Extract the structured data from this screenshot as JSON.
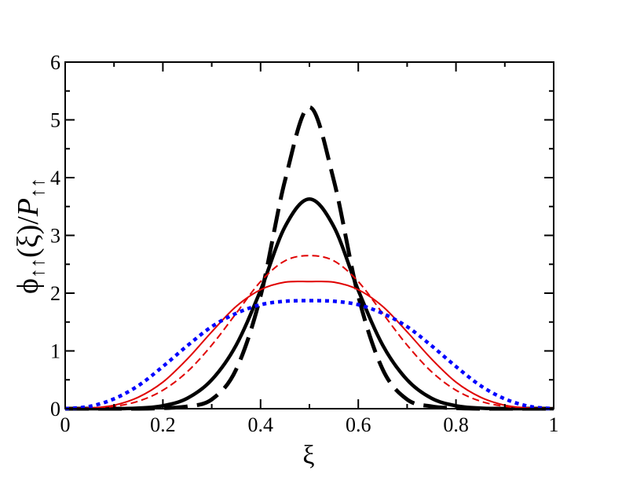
{
  "chart_data": {
    "type": "line",
    "title": "",
    "xlabel": "ξ",
    "ylabel": {
      "main": "ϕ",
      "sub1": "↑↑",
      "mid": "(ξ)/",
      "italic": "P",
      "sub2": "↑↑"
    },
    "xlim": [
      0,
      1
    ],
    "ylim": [
      0,
      6
    ],
    "x_ticks": [
      0,
      0.2,
      0.4,
      0.6,
      0.8,
      1
    ],
    "x_tick_labels": [
      "0",
      "0.2",
      "0.4",
      "0.6",
      "0.8",
      "1"
    ],
    "y_ticks": [
      0,
      1,
      2,
      3,
      4,
      5,
      6
    ],
    "y_tick_labels": [
      "0",
      "1",
      "2",
      "3",
      "4",
      "5",
      "6"
    ],
    "grid": false,
    "legend": "none",
    "series": [
      {
        "style": "black-thick-long-dash",
        "color": "#000000",
        "x": [
          0,
          0.05,
          0.1,
          0.15,
          0.2,
          0.25,
          0.3,
          0.35,
          0.4,
          0.45,
          0.5,
          0.55,
          0.6,
          0.65,
          0.7,
          0.75,
          0.8,
          0.85,
          0.9,
          0.95,
          1
        ],
        "y": [
          0,
          0,
          0,
          0,
          0.01,
          0.04,
          0.16,
          0.68,
          1.95,
          3.95,
          5.22,
          3.95,
          1.95,
          0.68,
          0.16,
          0.04,
          0.01,
          0,
          0,
          0,
          0
        ]
      },
      {
        "style": "black-thick-solid",
        "color": "#000000",
        "x": [
          0,
          0.05,
          0.1,
          0.15,
          0.2,
          0.25,
          0.3,
          0.35,
          0.4,
          0.45,
          0.5,
          0.55,
          0.6,
          0.65,
          0.7,
          0.75,
          0.8,
          0.85,
          0.9,
          0.95,
          1
        ],
        "y": [
          0,
          0,
          0,
          0.01,
          0.05,
          0.18,
          0.5,
          1.1,
          2.05,
          3.15,
          3.63,
          3.15,
          2.05,
          1.1,
          0.5,
          0.18,
          0.05,
          0.01,
          0,
          0,
          0
        ]
      },
      {
        "style": "red-dashed",
        "color": "#e00000",
        "x": [
          0,
          0.05,
          0.1,
          0.15,
          0.2,
          0.25,
          0.3,
          0.35,
          0.4,
          0.45,
          0.5,
          0.55,
          0.6,
          0.65,
          0.7,
          0.75,
          0.8,
          0.85,
          0.9,
          0.95,
          1
        ],
        "y": [
          0,
          0.01,
          0.04,
          0.13,
          0.32,
          0.64,
          1.1,
          1.65,
          2.2,
          2.56,
          2.65,
          2.56,
          2.2,
          1.65,
          1.1,
          0.64,
          0.32,
          0.13,
          0.04,
          0.01,
          0
        ]
      },
      {
        "style": "red-solid",
        "color": "#e00000",
        "x": [
          0,
          0.05,
          0.1,
          0.15,
          0.2,
          0.25,
          0.3,
          0.35,
          0.4,
          0.45,
          0.5,
          0.55,
          0.6,
          0.65,
          0.7,
          0.75,
          0.8,
          0.85,
          0.9,
          0.95,
          1
        ],
        "y": [
          0,
          0.01,
          0.06,
          0.2,
          0.46,
          0.86,
          1.33,
          1.77,
          2.06,
          2.19,
          2.2,
          2.19,
          2.06,
          1.77,
          1.33,
          0.86,
          0.46,
          0.2,
          0.06,
          0.01,
          0
        ]
      },
      {
        "style": "blue-dotted",
        "color": "#0000ff",
        "x": [
          0,
          0.05,
          0.1,
          0.15,
          0.2,
          0.25,
          0.3,
          0.35,
          0.4,
          0.45,
          0.5,
          0.55,
          0.6,
          0.65,
          0.7,
          0.75,
          0.8,
          0.85,
          0.9,
          0.95,
          1
        ],
        "y": [
          0,
          0.04,
          0.17,
          0.4,
          0.73,
          1.09,
          1.42,
          1.65,
          1.8,
          1.86,
          1.87,
          1.86,
          1.8,
          1.65,
          1.42,
          1.09,
          0.73,
          0.4,
          0.17,
          0.04,
          0
        ]
      }
    ]
  }
}
